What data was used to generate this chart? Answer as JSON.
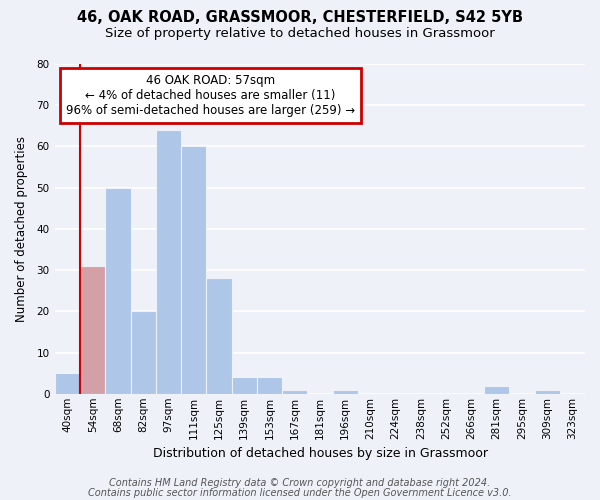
{
  "title": "46, OAK ROAD, GRASSMOOR, CHESTERFIELD, S42 5YB",
  "subtitle": "Size of property relative to detached houses in Grassmoor",
  "xlabel": "Distribution of detached houses by size in Grassmoor",
  "ylabel": "Number of detached properties",
  "bin_labels": [
    "40sqm",
    "54sqm",
    "68sqm",
    "82sqm",
    "97sqm",
    "111sqm",
    "125sqm",
    "139sqm",
    "153sqm",
    "167sqm",
    "181sqm",
    "196sqm",
    "210sqm",
    "224sqm",
    "238sqm",
    "252sqm",
    "266sqm",
    "281sqm",
    "295sqm",
    "309sqm",
    "323sqm"
  ],
  "bar_values": [
    5,
    31,
    50,
    20,
    64,
    60,
    28,
    4,
    4,
    1,
    0,
    1,
    0,
    0,
    0,
    0,
    0,
    2,
    0,
    1,
    0
  ],
  "bar_color": "#aec6e8",
  "highlight_bar_index": 1,
  "highlight_bar_color": "#d4a0a8",
  "red_line_bar_index": 1,
  "annotation_title": "46 OAK ROAD: 57sqm",
  "annotation_line1": "← 4% of detached houses are smaller (11)",
  "annotation_line2": "96% of semi-detached houses are larger (259) →",
  "annotation_box_facecolor": "#ffffff",
  "annotation_box_edgecolor": "#cc0000",
  "ylim": [
    0,
    80
  ],
  "yticks": [
    0,
    10,
    20,
    30,
    40,
    50,
    60,
    70,
    80
  ],
  "footer_line1": "Contains HM Land Registry data © Crown copyright and database right 2024.",
  "footer_line2": "Contains public sector information licensed under the Open Government Licence v3.0.",
  "background_color": "#eef2f8",
  "grid_color": "#ffffff",
  "title_fontsize": 10.5,
  "subtitle_fontsize": 9.5,
  "xlabel_fontsize": 9,
  "ylabel_fontsize": 8.5,
  "tick_fontsize": 7.5,
  "annotation_fontsize": 8.5,
  "footer_fontsize": 7
}
